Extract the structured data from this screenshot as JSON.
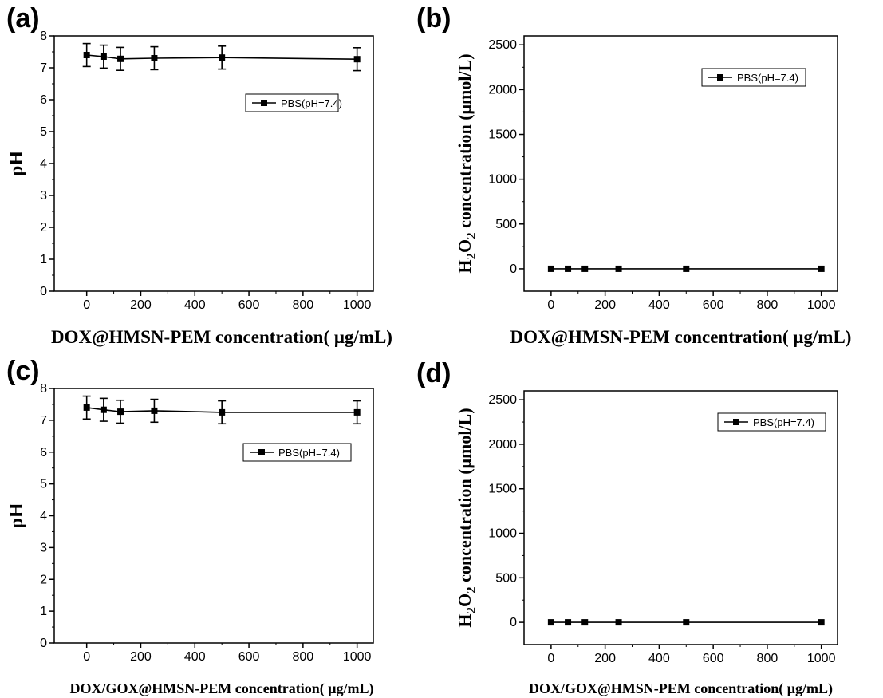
{
  "chart_data": [
    {
      "panel": "(a)",
      "type": "line",
      "xlabel": "DOX@HMSN-PEM concentration( μg/mL)",
      "ylabel": "pH",
      "xlim": [
        -120,
        1060
      ],
      "ylim": [
        0,
        8
      ],
      "xticks": [
        0,
        200,
        400,
        600,
        800,
        1000
      ],
      "yticks": [
        0,
        1,
        2,
        3,
        4,
        5,
        6,
        7,
        8
      ],
      "legend_position": "upper-right",
      "series": [
        {
          "name": "PBS(pH=7.4)",
          "x": [
            0,
            62.5,
            125,
            250,
            500,
            1000
          ],
          "y": [
            7.4,
            7.35,
            7.28,
            7.3,
            7.32,
            7.27
          ],
          "err": [
            0.36,
            0.36,
            0.36,
            0.36,
            0.36,
            0.36
          ]
        }
      ]
    },
    {
      "panel": "(b)",
      "type": "line",
      "xlabel": "DOX@HMSN-PEM concentration( μg/mL)",
      "ylabel": "H2O2 concentration (μmol/L)",
      "ylabel_parts": {
        "a": "H",
        "sub1": "2",
        "b": "O",
        "sub2": "2",
        "rest": " concentration (μmol/L)"
      },
      "xlim": [
        -100,
        1060
      ],
      "ylim": [
        -250,
        2600
      ],
      "xticks": [
        0,
        200,
        400,
        600,
        800,
        1000
      ],
      "yticks": [
        0,
        500,
        1000,
        1500,
        2000,
        2500
      ],
      "legend_position": "upper-right",
      "series": [
        {
          "name": "PBS(pH=7.4)",
          "x": [
            0,
            62.5,
            125,
            250,
            500,
            1000
          ],
          "y": [
            0,
            0,
            0,
            0,
            0,
            0
          ]
        }
      ]
    },
    {
      "panel": "(c)",
      "type": "line",
      "xlabel": "DOX/GOX@HMSN-PEM concentration( μg/mL)",
      "ylabel": "pH",
      "xlim": [
        -120,
        1060
      ],
      "ylim": [
        0,
        8
      ],
      "xticks": [
        0,
        200,
        400,
        600,
        800,
        1000
      ],
      "yticks": [
        0,
        1,
        2,
        3,
        4,
        5,
        6,
        7,
        8
      ],
      "legend_position": "upper-right",
      "series": [
        {
          "name": "PBS(pH=7.4)",
          "x": [
            0,
            62.5,
            125,
            250,
            500,
            1000
          ],
          "y": [
            7.4,
            7.33,
            7.27,
            7.3,
            7.25,
            7.25
          ],
          "err": [
            0.36,
            0.36,
            0.36,
            0.36,
            0.36,
            0.36
          ]
        }
      ]
    },
    {
      "panel": "(d)",
      "type": "line",
      "xlabel": "DOX/GOX@HMSN-PEM concentration( μg/mL)",
      "ylabel": "H2O2 concentration (μmol/L)",
      "ylabel_parts": {
        "a": "H",
        "sub1": "2",
        "b": "O",
        "sub2": "2",
        "rest": " concentration (μmol/L)"
      },
      "xlim": [
        -100,
        1060
      ],
      "ylim": [
        -250,
        2600
      ],
      "xticks": [
        0,
        200,
        400,
        600,
        800,
        1000
      ],
      "yticks": [
        0,
        500,
        1000,
        1500,
        2000,
        2500
      ],
      "legend_position": "upper-right",
      "series": [
        {
          "name": "PBS(pH=7.4)",
          "x": [
            0,
            62.5,
            125,
            250,
            500,
            1000
          ],
          "y": [
            0,
            0,
            0,
            0,
            0,
            0
          ]
        }
      ]
    }
  ]
}
